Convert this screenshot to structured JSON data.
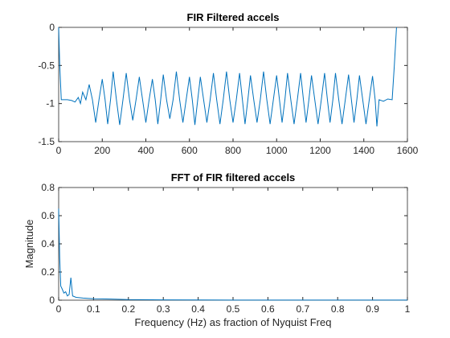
{
  "chart_data": [
    {
      "type": "line",
      "title": "FIR Filtered accels",
      "xlim": [
        0,
        1600
      ],
      "xticks": [
        0,
        200,
        400,
        600,
        800,
        1000,
        1200,
        1400,
        1600
      ],
      "ylim": [
        -1.5,
        0
      ],
      "yticks": [
        -1.5,
        -1,
        -0.5,
        0
      ],
      "series": [
        {
          "color": "#0072bd",
          "x": [
            0,
            5,
            12,
            40,
            60,
            75,
            90,
            100,
            110,
            125,
            140,
            155,
            170,
            185,
            200,
            213,
            225,
            238,
            250,
            265,
            280,
            295,
            310,
            325,
            340,
            355,
            370,
            385,
            400,
            415,
            430,
            443,
            455,
            468,
            480,
            495,
            510,
            525,
            540,
            555,
            570,
            585,
            600,
            613,
            625,
            638,
            650,
            665,
            680,
            695,
            710,
            725,
            740,
            755,
            770,
            785,
            800,
            815,
            830,
            843,
            855,
            868,
            880,
            895,
            910,
            925,
            940,
            955,
            970,
            985,
            1000,
            1013,
            1025,
            1038,
            1050,
            1065,
            1080,
            1095,
            1110,
            1123,
            1135,
            1148,
            1160,
            1175,
            1190,
            1205,
            1220,
            1233,
            1245,
            1258,
            1270,
            1285,
            1300,
            1315,
            1330,
            1343,
            1355,
            1368,
            1380,
            1395,
            1410,
            1425,
            1440,
            1452,
            1460,
            1470,
            1490,
            1510,
            1530,
            1540,
            1550
          ],
          "values": [
            0,
            -0.5,
            -0.95,
            -0.95,
            -0.96,
            -0.98,
            -0.92,
            -1.0,
            -0.85,
            -0.95,
            -0.75,
            -0.95,
            -1.25,
            -0.95,
            -0.68,
            -0.95,
            -1.27,
            -0.95,
            -0.58,
            -0.95,
            -1.28,
            -0.95,
            -0.6,
            -0.95,
            -1.22,
            -0.95,
            -0.65,
            -0.95,
            -1.25,
            -0.95,
            -0.68,
            -0.95,
            -1.27,
            -0.95,
            -0.62,
            -0.95,
            -1.2,
            -0.95,
            -0.58,
            -0.95,
            -1.25,
            -0.95,
            -0.65,
            -0.95,
            -1.28,
            -0.95,
            -0.65,
            -0.95,
            -1.25,
            -0.95,
            -0.6,
            -0.95,
            -1.27,
            -0.95,
            -0.58,
            -0.95,
            -1.25,
            -0.95,
            -0.6,
            -0.95,
            -1.27,
            -0.95,
            -0.63,
            -0.95,
            -1.25,
            -0.95,
            -0.58,
            -0.95,
            -1.27,
            -0.95,
            -0.63,
            -0.95,
            -1.25,
            -0.95,
            -0.6,
            -0.95,
            -1.27,
            -0.95,
            -0.6,
            -0.95,
            -1.25,
            -0.95,
            -0.63,
            -0.95,
            -1.27,
            -0.95,
            -0.6,
            -0.95,
            -1.25,
            -0.95,
            -0.6,
            -0.95,
            -1.27,
            -0.95,
            -0.62,
            -0.95,
            -1.25,
            -0.95,
            -0.63,
            -0.95,
            -1.27,
            -0.95,
            -0.64,
            -0.95,
            -1.3,
            -0.95,
            -0.97,
            -0.94,
            -0.95,
            -0.5,
            0
          ]
        }
      ]
    },
    {
      "type": "line",
      "title": "FFT of FIR filtered accels",
      "x_label": "Frequency (Hz) as fraction of Nyquist Freq",
      "y_label": "Magnitude",
      "xlim": [
        0,
        1
      ],
      "xticks": [
        0,
        0.1,
        0.2,
        0.3,
        0.4,
        0.5,
        0.6,
        0.7,
        0.8,
        0.9,
        1
      ],
      "ylim": [
        0,
        0.8
      ],
      "yticks": [
        0,
        0.2,
        0.4,
        0.6,
        0.8
      ],
      "series": [
        {
          "color": "#0072bd",
          "x": [
            0,
            0.003,
            0.006,
            0.01,
            0.015,
            0.02,
            0.025,
            0.03,
            0.035,
            0.04,
            0.05,
            0.07,
            0.1,
            0.15,
            0.2,
            0.3,
            0.5,
            0.7,
            1
          ],
          "values": [
            0.65,
            0.3,
            0.1,
            0.08,
            0.05,
            0.06,
            0.03,
            0.04,
            0.16,
            0.03,
            0.02,
            0.015,
            0.01,
            0.008,
            0.004,
            0.002,
            0.001,
            0.001,
            0.001
          ]
        }
      ]
    }
  ]
}
